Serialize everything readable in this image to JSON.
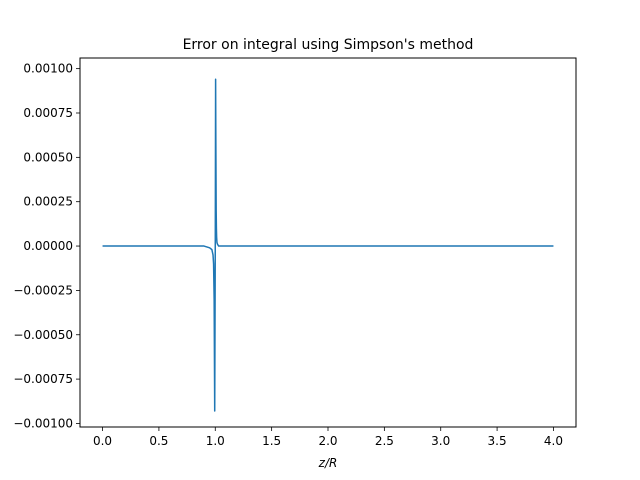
{
  "chart_data": {
    "type": "line",
    "title": "Error on integral using Simpson's method",
    "xlabel": "z/R",
    "ylabel": "",
    "xlim": [
      -0.2,
      4.2
    ],
    "ylim": [
      -0.00102,
      0.00106
    ],
    "x_ticks": [
      0.0,
      0.5,
      1.0,
      1.5,
      2.0,
      2.5,
      3.0,
      3.5,
      4.0
    ],
    "x_tick_labels": [
      "0.0",
      "0.5",
      "1.0",
      "1.5",
      "2.0",
      "2.5",
      "3.0",
      "3.5",
      "4.0"
    ],
    "y_ticks": [
      0.001,
      0.00075,
      0.0005,
      0.00025,
      0.0,
      -0.00025,
      -0.0005,
      -0.00075,
      -0.001
    ],
    "y_tick_labels": [
      "0.00100",
      "0.00075",
      "0.00050",
      "0.00025",
      "0.00000",
      "−0.00025",
      "−0.00050",
      "−0.00075",
      "−0.00100"
    ],
    "grid": false,
    "series": [
      {
        "color": "#1f77b4",
        "x": [
          0.0,
          0.5,
          0.9,
          0.95,
          0.97,
          0.98,
          0.985,
          0.99,
          0.995,
          1.0,
          1.003,
          1.005,
          1.008,
          1.01,
          1.012,
          1.015,
          1.02,
          1.03,
          1.05,
          1.1,
          1.5,
          2.0,
          3.0,
          4.0
        ],
        "y": [
          0.0,
          0.0,
          0.0,
          -1e-05,
          -2e-05,
          -5e-05,
          -0.0001,
          -0.0003,
          -0.00093,
          0.0,
          0.00094,
          0.0006,
          0.0002,
          0.0001,
          5e-05,
          2e-05,
          1e-05,
          0.0,
          0.0,
          0.0,
          0.0,
          0.0,
          0.0,
          0.0
        ]
      }
    ]
  }
}
